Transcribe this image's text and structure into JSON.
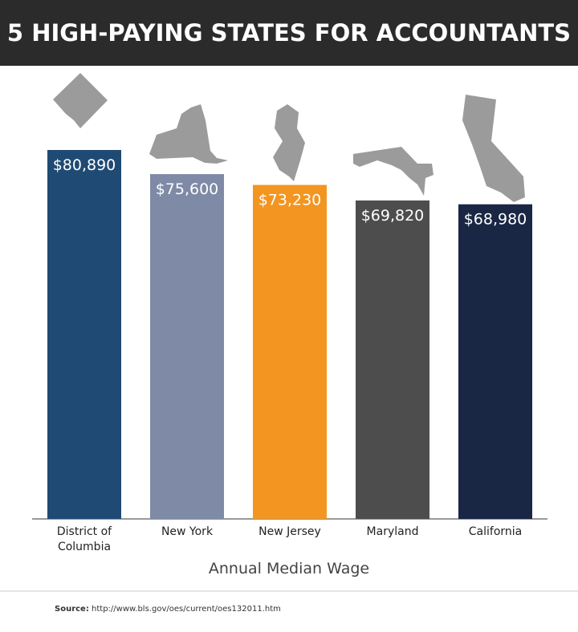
{
  "chart_data": {
    "type": "bar",
    "title": "5 HIGH-PAYING STATES FOR ACCOUNTANTS",
    "categories": [
      "District of Columbia",
      "New York",
      "New Jersey",
      "Maryland",
      "California"
    ],
    "values": [
      80890,
      75600,
      73230,
      69820,
      68980
    ],
    "value_labels": [
      "$80,890",
      "$75,600",
      "$73,230",
      "$69,820",
      "$68,980"
    ],
    "colors": [
      "#1f4a73",
      "#7e8aa6",
      "#f39521",
      "#4d4d4d",
      "#1a2744"
    ],
    "x_label": "Annual Median Wage"
  },
  "source": {
    "label": "Source:",
    "url": "http://www.bls.gov/oes/current/oes132011.htm"
  }
}
